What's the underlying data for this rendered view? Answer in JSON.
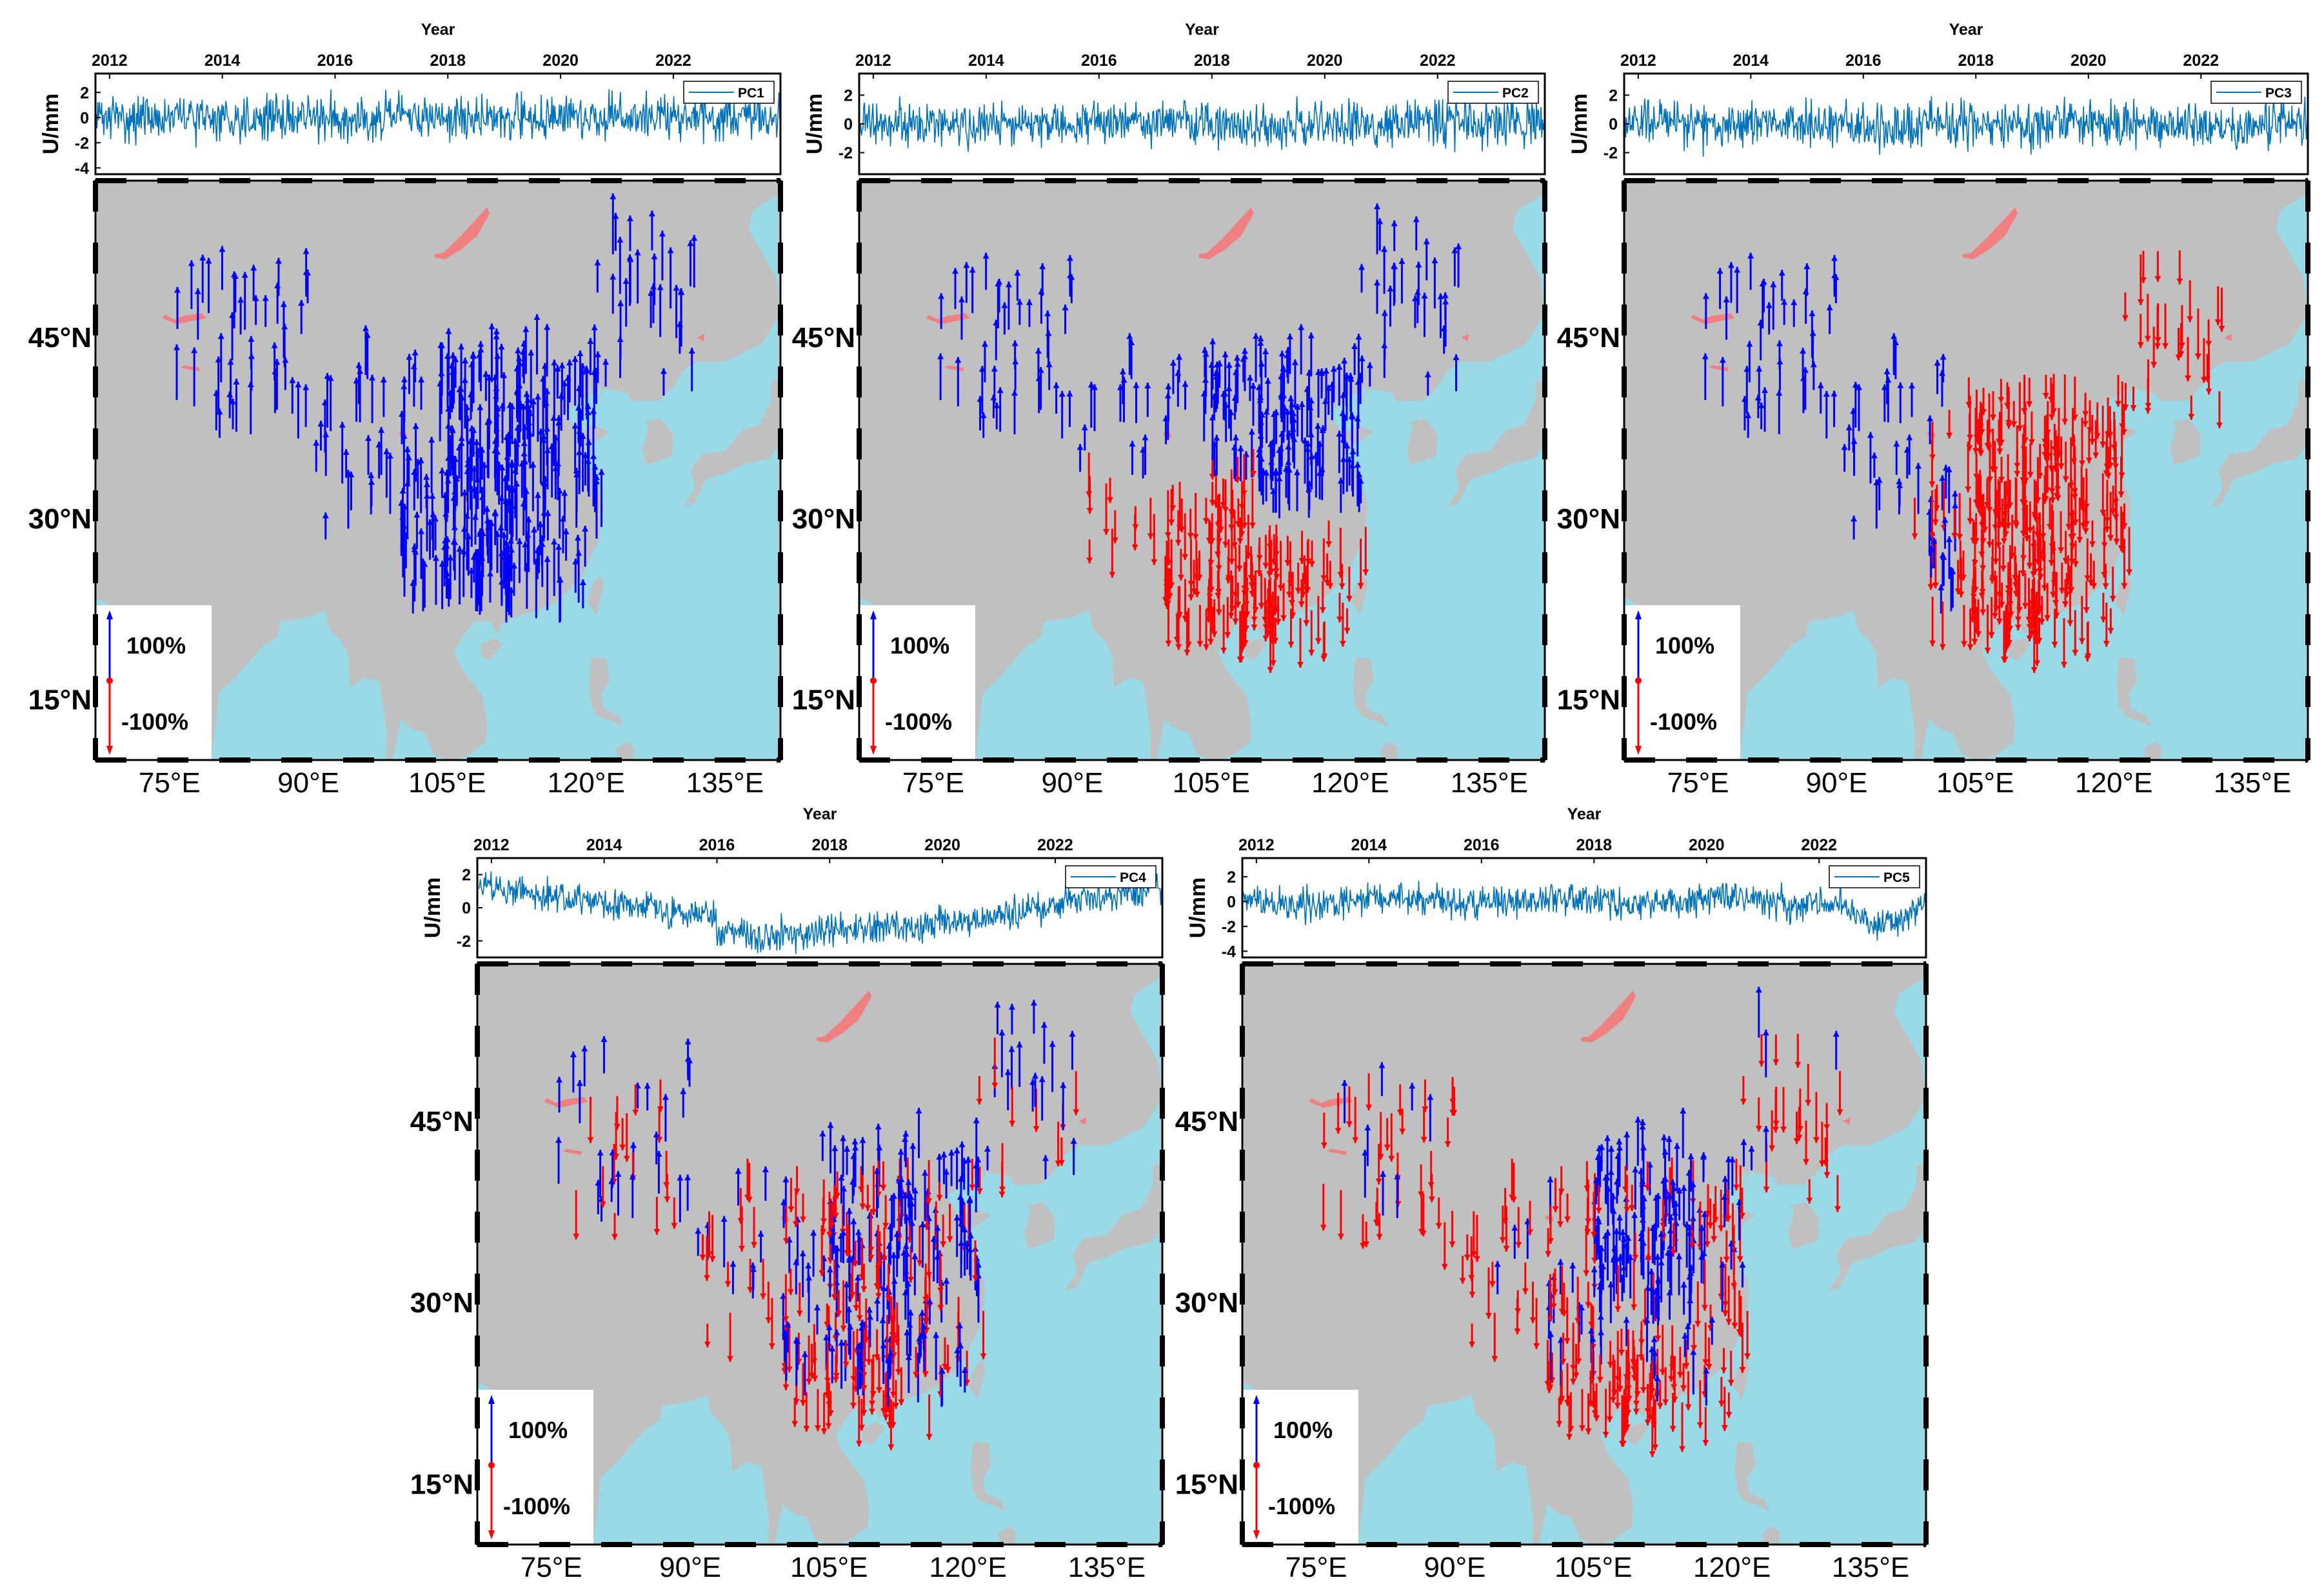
{
  "figure": {
    "colors": {
      "land": "#c0c0c0",
      "ocean": "#9ad9e6",
      "lake": "#f08080",
      "positive_arrow": "#0000ff",
      "negative_arrow": "#ff0000",
      "timeseries_line": "#0072bd"
    }
  },
  "chart_data": [
    {
      "name": "PC1",
      "type": "line",
      "xlabel": "Year",
      "ylabel": "U/mm",
      "x_ticks": [
        "2012",
        "2014",
        "2016",
        "2018",
        "2020",
        "2022"
      ],
      "y_ticks": [
        "2",
        "0",
        "-2",
        "-4"
      ],
      "ylim": [
        -4.5,
        3.5
      ],
      "xlim": [
        2011.75,
        2023.9
      ],
      "legend": "PC1",
      "legend_position": "top-right",
      "trend": "noise",
      "amplitude": 1.1,
      "map": {
        "lon_ticks": [
          "75°E",
          "90°E",
          "105°E",
          "120°E",
          "135°E"
        ],
        "lat_ticks": [
          "45°N",
          "30°N",
          "15°N"
        ],
        "scale_labels": [
          "100%",
          "-100%"
        ],
        "arrows": {
          "positive_fraction": 1.0,
          "pattern": "all-up"
        }
      }
    },
    {
      "name": "PC2",
      "type": "line",
      "xlabel": "Year",
      "ylabel": "U/mm",
      "x_ticks": [
        "2012",
        "2014",
        "2016",
        "2018",
        "2020",
        "2022"
      ],
      "y_ticks": [
        "2",
        "0",
        "-2"
      ],
      "ylim": [
        -3.5,
        3.5
      ],
      "xlim": [
        2011.75,
        2023.9
      ],
      "legend": "PC2",
      "legend_position": "top-right",
      "trend": "noise",
      "amplitude": 1.0,
      "map": {
        "lon_ticks": [
          "75°E",
          "90°E",
          "105°E",
          "120°E",
          "135°E"
        ],
        "lat_ticks": [
          "45°N",
          "30°N",
          "15°N"
        ],
        "scale_labels": [
          "100%",
          "-100%"
        ],
        "arrows": {
          "pattern": "north-up-south-down"
        }
      }
    },
    {
      "name": "PC3",
      "type": "line",
      "xlabel": "Year",
      "ylabel": "U/mm",
      "x_ticks": [
        "2012",
        "2014",
        "2016",
        "2018",
        "2020",
        "2022"
      ],
      "y_ticks": [
        "2",
        "0",
        "-2"
      ],
      "ylim": [
        -3.5,
        3.5
      ],
      "xlim": [
        2011.75,
        2023.9
      ],
      "legend": "PC3",
      "legend_position": "top-right",
      "trend": "noise",
      "amplitude": 1.0,
      "map": {
        "lon_ticks": [
          "75°E",
          "90°E",
          "105°E",
          "120°E",
          "135°E"
        ],
        "lat_ticks": [
          "45°N",
          "30°N",
          "15°N"
        ],
        "scale_labels": [
          "100%",
          "-100%"
        ],
        "arrows": {
          "pattern": "west-up-east-down"
        }
      }
    },
    {
      "name": "PC4",
      "type": "line",
      "xlabel": "Year",
      "ylabel": "U/mm",
      "x_ticks": [
        "2012",
        "2014",
        "2016",
        "2018",
        "2020",
        "2022"
      ],
      "y_ticks": [
        "2",
        "0",
        "-2"
      ],
      "ylim": [
        -3,
        3
      ],
      "xlim": [
        2011.75,
        2023.9
      ],
      "legend": "PC4",
      "legend_position": "top-right",
      "trend": "dip",
      "amplitude": 0.6,
      "map": {
        "lon_ticks": [
          "75°E",
          "90°E",
          "105°E",
          "120°E",
          "135°E"
        ],
        "lat_ticks": [
          "45°N",
          "30°N",
          "15°N"
        ],
        "scale_labels": [
          "100%",
          "-100%"
        ],
        "arrows": {
          "pattern": "mixed"
        }
      }
    },
    {
      "name": "PC5",
      "type": "line",
      "xlabel": "Year",
      "ylabel": "U/mm",
      "x_ticks": [
        "2012",
        "2014",
        "2016",
        "2018",
        "2020",
        "2022"
      ],
      "y_ticks": [
        "2",
        "0",
        "-2",
        "-4"
      ],
      "ylim": [
        -4.5,
        3.5
      ],
      "xlim": [
        2011.75,
        2023.9
      ],
      "legend": "PC5",
      "legend_position": "top-right",
      "trend": "late-dip",
      "amplitude": 0.8,
      "map": {
        "lon_ticks": [
          "75°E",
          "90°E",
          "105°E",
          "120°E",
          "135°E"
        ],
        "lat_ticks": [
          "45°N",
          "30°N",
          "15°N"
        ],
        "scale_labels": [
          "100%",
          "-100%"
        ],
        "arrows": {
          "pattern": "center-up-edges-down"
        }
      }
    }
  ]
}
